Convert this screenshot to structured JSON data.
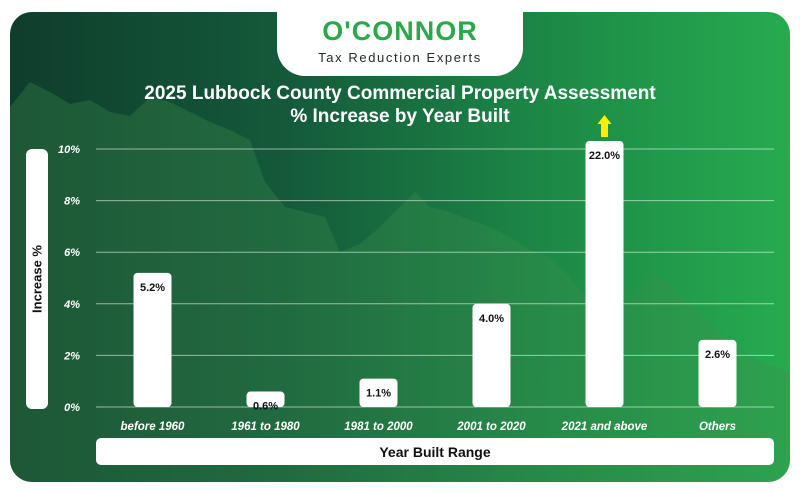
{
  "brand": {
    "name": "O'CONNOR",
    "tagline": "Tax Reduction Experts"
  },
  "colors": {
    "brand_green": "#2aa84a",
    "bar": "#ffffff",
    "overflow_arrow": "#ffee00"
  },
  "chart_data": {
    "type": "bar",
    "title": "2025 Lubbock County Commercial Property Assessment",
    "subtitle": "% Increase by Year Built",
    "xlabel": "Year Built Range",
    "ylabel": "Increase %",
    "categories": [
      "before 1960",
      "1961 to 1980",
      "1981 to 2000",
      "2001 to 2020",
      "2021 and above",
      "Others"
    ],
    "values": [
      5.2,
      0.6,
      1.1,
      4.0,
      22.0,
      2.6
    ],
    "data_labels": [
      "5.2%",
      "0.6%",
      "1.1%",
      "4.0%",
      "22.0%",
      "2.6%"
    ],
    "ylim": [
      0,
      10
    ],
    "yticks": [
      0,
      2,
      4,
      6,
      8,
      10
    ],
    "ytick_labels": [
      "0%",
      "2%",
      "4%",
      "6%",
      "8%",
      "10%"
    ],
    "grid": true,
    "legend": "none",
    "clipped_above_axis": [
      "2021 and above"
    ]
  }
}
